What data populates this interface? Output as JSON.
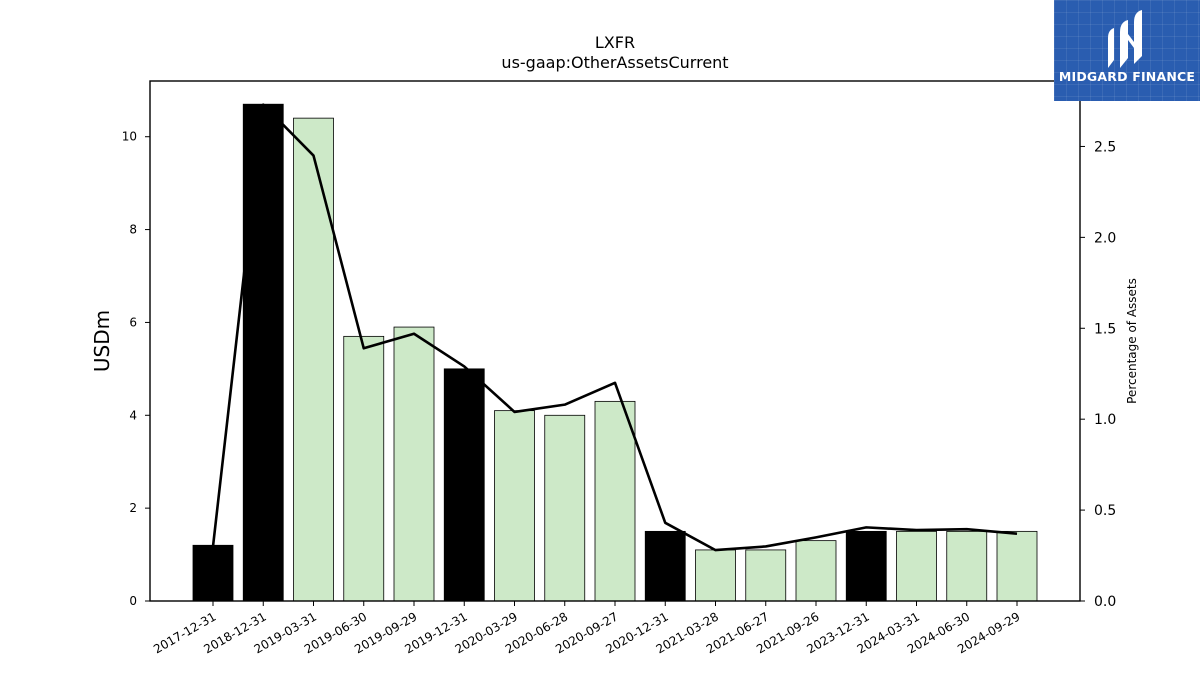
{
  "chart_data": {
    "type": "bar",
    "title": "LXFR",
    "subtitle": "us-gaap:OtherAssetsCurrent",
    "ylabel": "USDm",
    "ylabel_right": "Percentage of Assets",
    "ylim": [
      0,
      11.2
    ],
    "ylim_right": [
      0,
      2.86
    ],
    "yticks": [
      0,
      2,
      4,
      6,
      8,
      10
    ],
    "yticks_right": [
      "0.0",
      "0.5",
      "1.0",
      "1.5",
      "2.0",
      "2.5"
    ],
    "categories": [
      "2017-12-31",
      "2018-12-31",
      "2019-03-31",
      "2019-06-30",
      "2019-09-29",
      "2019-12-31",
      "2020-03-29",
      "2020-06-28",
      "2020-09-27",
      "2020-12-31",
      "2021-03-28",
      "2021-06-27",
      "2021-09-26",
      "2023-12-31",
      "2024-03-31",
      "2024-06-30",
      "2024-09-29"
    ],
    "series": [
      {
        "type": "bar",
        "values": [
          1.2,
          10.7,
          10.4,
          5.7,
          5.9,
          5.0,
          4.1,
          4.0,
          4.3,
          1.5,
          1.1,
          1.1,
          1.3,
          1.5,
          1.5,
          1.5,
          1.5
        ],
        "bar_kind": [
          "annual",
          "annual",
          "quarter",
          "quarter",
          "quarter",
          "annual",
          "quarter",
          "quarter",
          "quarter",
          "annual",
          "quarter",
          "quarter",
          "quarter",
          "annual",
          "quarter",
          "quarter",
          "quarter"
        ]
      },
      {
        "type": "line",
        "axis": "right",
        "values": [
          0.3,
          2.73,
          2.45,
          1.39,
          1.47,
          1.29,
          1.04,
          1.08,
          1.2,
          0.43,
          0.28,
          0.3,
          0.35,
          0.405,
          0.39,
          0.395,
          0.37
        ]
      }
    ],
    "colors": {
      "annual_bar": "#000000",
      "quarter_bar": "#cde9c8",
      "line": "#000000"
    },
    "grid": false,
    "legend": "none"
  },
  "logo": {
    "text": "MIDGARD FINANCE",
    "background": "#2a5db0"
  }
}
